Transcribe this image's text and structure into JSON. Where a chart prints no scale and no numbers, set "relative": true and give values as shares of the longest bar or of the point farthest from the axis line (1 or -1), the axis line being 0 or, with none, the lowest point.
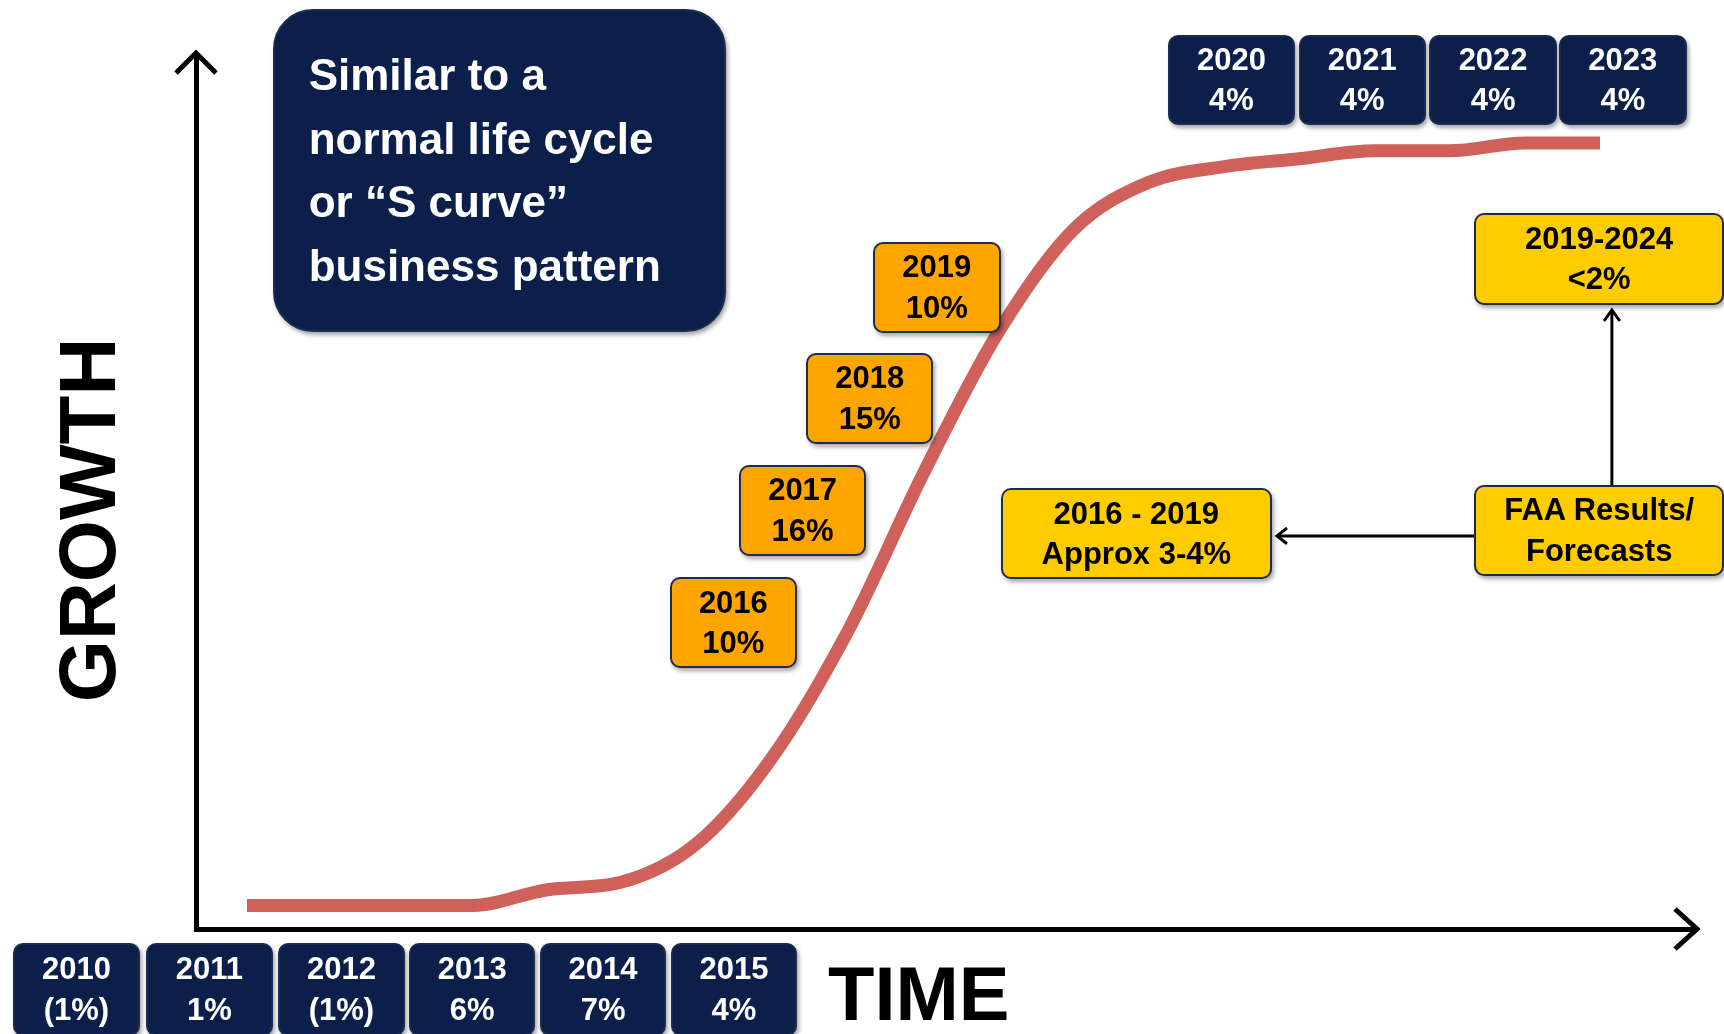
{
  "chart_data": {
    "type": "line",
    "xlabel": "TIME",
    "ylabel": "GROWTH",
    "relative": true,
    "legend": false,
    "grid": false,
    "marker": "none",
    "color": "#d0605a",
    "categories": [
      null,
      null,
      null,
      null,
      null,
      null,
      null,
      null,
      null,
      null,
      null,
      null,
      null,
      null,
      null,
      null,
      null,
      null,
      null
    ],
    "values": [
      0.03,
      0.03,
      0.03,
      0.03,
      0.05,
      0.06,
      0.11,
      0.22,
      0.38,
      0.58,
      0.76,
      0.89,
      0.95,
      0.97,
      0.98,
      0.99,
      0.99,
      1.0,
      1.0
    ],
    "annotations": [
      "Similar to a\nnormal life cycle\nor “S curve”\nbusiness pattern",
      "2010\n(1%)",
      "2011\n1%",
      "2012\n(1%)",
      "2013\n6%",
      "2014\n7%",
      "2015\n4%",
      "2016\n10%",
      "2017\n16%",
      "2018\n15%",
      "2019\n10%",
      "2020\n4%",
      "2021\n4%",
      "2022\n4%",
      "2023\n4%",
      "2016 - 2019\nApprox 3-4%",
      "FAA Results/\nForecasts",
      "2019-2024\n<2%"
    ]
  }
}
